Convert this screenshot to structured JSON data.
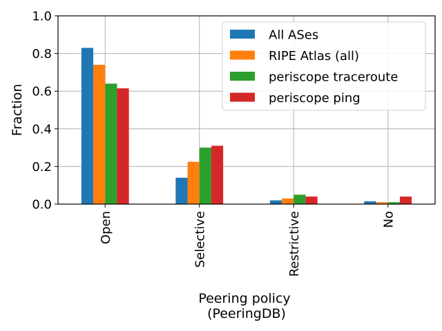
{
  "chart_data": {
    "type": "bar",
    "categories": [
      "Open",
      "Selective",
      "Restrictive",
      "No"
    ],
    "series": [
      {
        "name": "All ASes",
        "color": "#1f77b4",
        "values": [
          0.83,
          0.14,
          0.02,
          0.015
        ]
      },
      {
        "name": "RIPE Atlas (all)",
        "color": "#ff7f0e",
        "values": [
          0.74,
          0.225,
          0.03,
          0.01
        ]
      },
      {
        "name": "periscope traceroute",
        "color": "#2ca02c",
        "values": [
          0.64,
          0.3,
          0.05,
          0.01
        ]
      },
      {
        "name": "periscope ping",
        "color": "#d62728",
        "values": [
          0.615,
          0.31,
          0.04,
          0.04
        ]
      }
    ],
    "xlabel": [
      "Peering policy",
      "(PeeringDB)"
    ],
    "ylabel": "Fraction",
    "ylim": [
      0,
      1.0
    ],
    "yticks": [
      "0.0",
      "0.2",
      "0.4",
      "0.6",
      "0.8",
      "1.0"
    ],
    "grid": true,
    "legend_position": "top-right"
  }
}
